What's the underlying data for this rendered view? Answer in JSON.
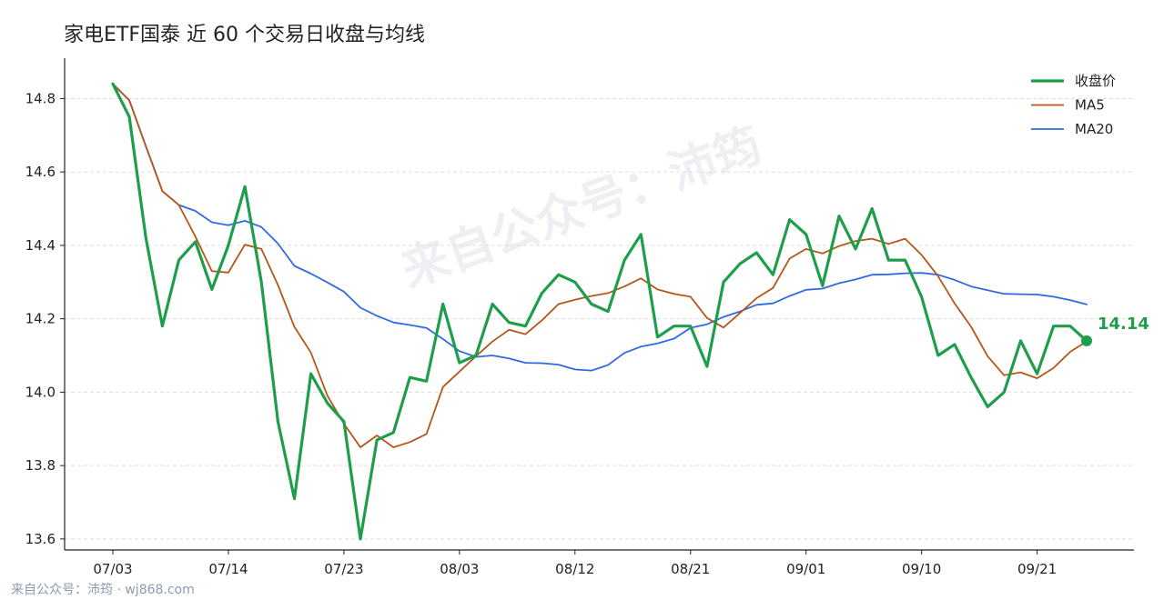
{
  "chart_title": "家电ETF国泰 近 60 个交易日收盘与均线",
  "footer_credit": "来自公众号：沛筠 · wj868.com",
  "watermark": "来自公众号：沛筠",
  "colors": {
    "close": "#1e9e4a",
    "ma5": "#b5561a",
    "ma20": "#2f6be0",
    "grid": "#dddddd",
    "axis": "#222222"
  },
  "chart_data": {
    "type": "line",
    "title": "家电ETF国泰 近 60 个交易日收盘与均线",
    "xlabel": "",
    "ylabel": "",
    "ylim": [
      13.57,
      14.91
    ],
    "yticks": [
      "13.6",
      "13.8",
      "14.0",
      "14.2",
      "14.4",
      "14.6",
      "14.8"
    ],
    "xtick_labels": [
      "07/03",
      "07/14",
      "07/23",
      "08/03",
      "08/12",
      "08/21",
      "09/01",
      "09/10",
      "09/21"
    ],
    "xtick_indices": [
      0,
      7,
      14,
      21,
      28,
      35,
      42,
      49,
      56
    ],
    "grid": "horizontal-dashed",
    "legend_position": "top-right",
    "n_points": 60,
    "series": [
      {
        "name": "收盘价",
        "values": [
          14.84,
          14.75,
          14.42,
          14.18,
          14.36,
          14.41,
          14.28,
          14.4,
          14.56,
          14.3,
          13.92,
          13.71,
          14.05,
          13.97,
          13.92,
          13.6,
          13.87,
          13.89,
          14.04,
          14.03,
          14.24,
          14.08,
          14.1,
          14.24,
          14.19,
          14.18,
          14.27,
          14.32,
          14.3,
          14.24,
          14.22,
          14.36,
          14.43,
          14.15,
          14.18,
          14.18,
          14.07,
          14.3,
          14.35,
          14.38,
          14.32,
          14.47,
          14.43,
          14.29,
          14.48,
          14.39,
          14.5,
          14.36,
          14.36,
          14.26,
          14.1,
          14.13,
          14.04,
          13.96,
          14.0,
          14.14,
          14.05,
          14.18,
          14.18,
          14.14
        ]
      },
      {
        "name": "MA5",
        "values": [
          14.84,
          14.795,
          14.67,
          14.548,
          14.51,
          14.424,
          14.33,
          14.326,
          14.402,
          14.39,
          14.292,
          14.178,
          14.108,
          13.99,
          13.914,
          13.85,
          13.882,
          13.85,
          13.864,
          13.886,
          14.014,
          14.056,
          14.098,
          14.138,
          14.17,
          14.158,
          14.196,
          14.24,
          14.252,
          14.262,
          14.27,
          14.288,
          14.31,
          14.28,
          14.268,
          14.26,
          14.202,
          14.176,
          14.216,
          14.256,
          14.284,
          14.364,
          14.39,
          14.378,
          14.398,
          14.412,
          14.418,
          14.404,
          14.418,
          14.374,
          14.316,
          14.242,
          14.178,
          14.098,
          14.046,
          14.054,
          14.038,
          14.066,
          14.11,
          14.138
        ]
      },
      {
        "name": "MA20",
        "values": [
          14.84,
          14.795,
          14.67,
          14.548,
          14.51,
          14.494,
          14.463,
          14.455,
          14.467,
          14.45,
          14.405,
          14.344,
          14.323,
          14.299,
          14.274,
          14.23,
          14.208,
          14.19,
          14.183,
          14.175,
          14.145,
          14.112,
          14.096,
          14.1,
          14.092,
          14.08,
          14.079,
          14.075,
          14.062,
          14.059,
          14.074,
          14.107,
          14.124,
          14.133,
          14.146,
          14.175,
          14.185,
          14.205,
          14.22,
          14.238,
          14.242,
          14.262,
          14.279,
          14.282,
          14.297,
          14.307,
          14.32,
          14.321,
          14.324,
          14.325,
          14.32,
          14.306,
          14.288,
          14.278,
          14.268,
          14.267,
          14.266,
          14.26,
          14.251,
          14.239
        ]
      }
    ],
    "last_value_label": "14.14"
  }
}
